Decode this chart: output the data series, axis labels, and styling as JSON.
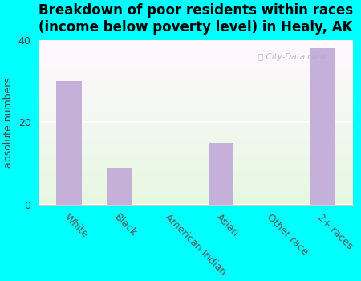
{
  "title": "Breakdown of poor residents within races\n(income below poverty level) in Healy, AK",
  "categories": [
    "White",
    "Black",
    "American Indian",
    "Asian",
    "Other race",
    "2+ races"
  ],
  "values": [
    30,
    9,
    0,
    15,
    0,
    38
  ],
  "bar_color": "#c4b0d8",
  "ylabel": "absolute numbers",
  "ylim": [
    0,
    40
  ],
  "yticks": [
    0,
    20,
    40
  ],
  "background_color": "#00ffff",
  "title_fontsize": 12,
  "axis_label_fontsize": 9,
  "tick_fontsize": 9,
  "bar_width": 0.5
}
